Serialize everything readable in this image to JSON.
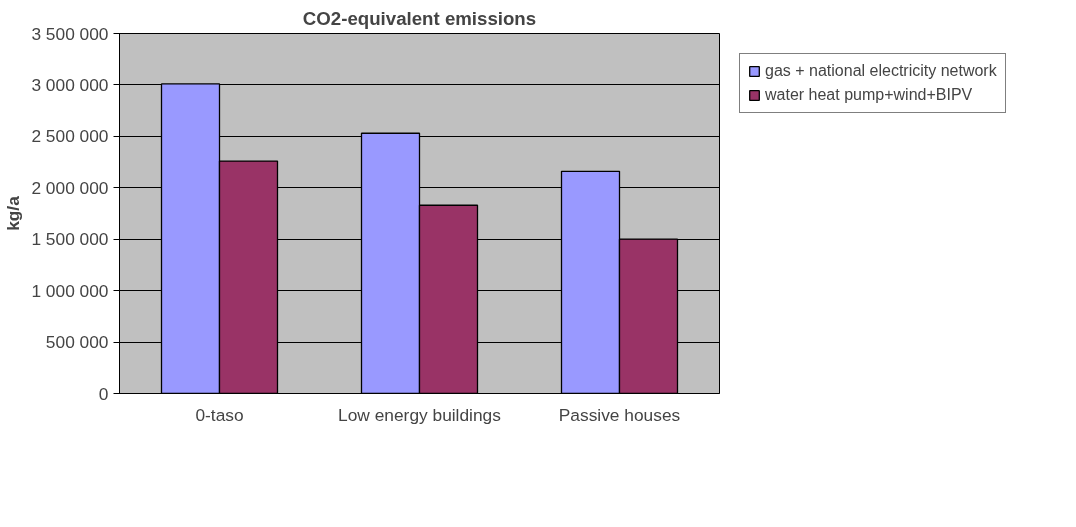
{
  "chart_data": {
    "type": "bar",
    "title": "CO2-equivalent emissions",
    "ylabel": "kg/a",
    "categories": [
      "0-taso",
      "Low energy buildings",
      "Passive houses"
    ],
    "series": [
      {
        "name": "gas + national electricity network",
        "color": "#9999ff",
        "values": [
          3010000,
          2530000,
          2160000
        ]
      },
      {
        "name": "water heat pump+wind+BIPV",
        "color": "#993366",
        "values": [
          2260000,
          1830000,
          1500000
        ]
      }
    ],
    "ylim": [
      0,
      3500000
    ],
    "yticks": [
      {
        "value": 0,
        "label": "0"
      },
      {
        "value": 500000,
        "label": "500 000"
      },
      {
        "value": 1000000,
        "label": "1 000 000"
      },
      {
        "value": 1500000,
        "label": "1 500 000"
      },
      {
        "value": 2000000,
        "label": "2 000 000"
      },
      {
        "value": 2500000,
        "label": "2 500 000"
      },
      {
        "value": 3000000,
        "label": "3 000 000"
      },
      {
        "value": 3500000,
        "label": "3 500 000"
      }
    ],
    "grid": "y",
    "legend": "right"
  }
}
